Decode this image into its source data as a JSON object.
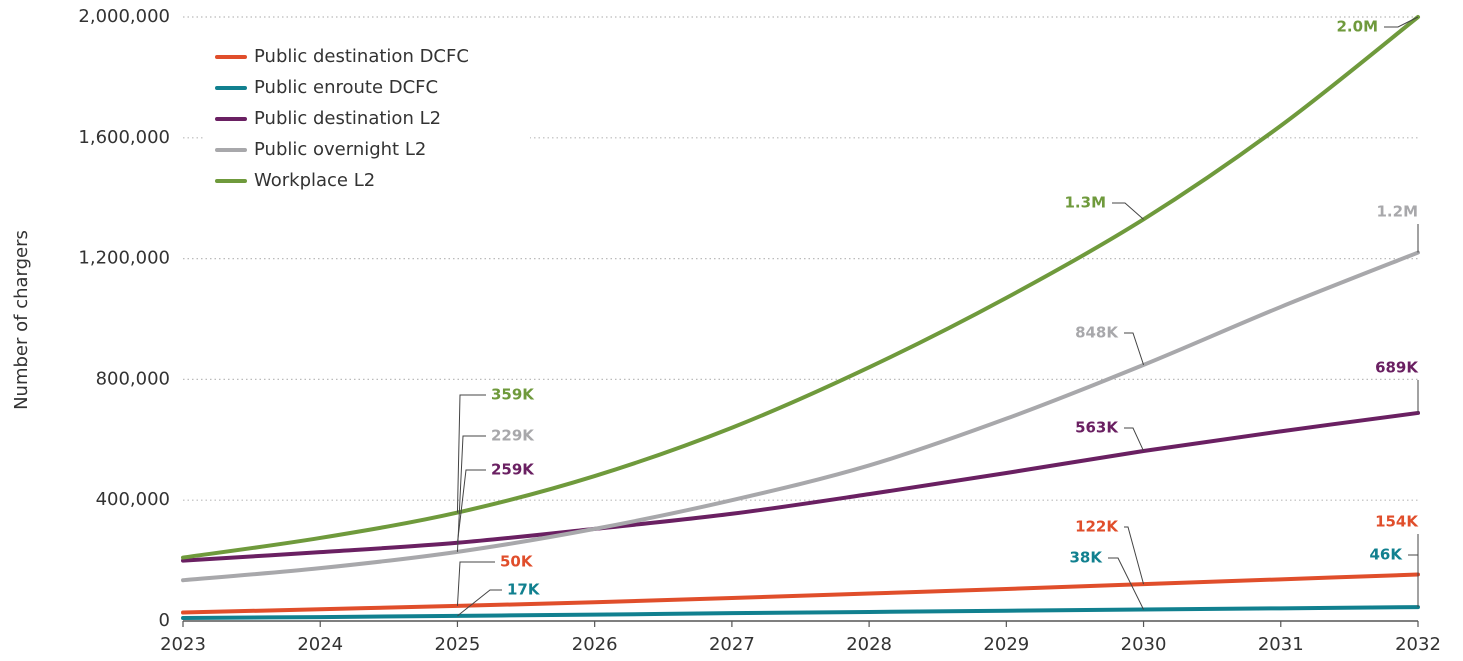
{
  "chart_data": {
    "type": "line",
    "y_label": "Number of chargers",
    "x": [
      2023,
      2024,
      2025,
      2026,
      2027,
      2028,
      2029,
      2030,
      2031,
      2032
    ],
    "xlim": [
      2023,
      2032
    ],
    "xticks": [
      2023,
      2024,
      2025,
      2026,
      2027,
      2028,
      2029,
      2030,
      2031,
      2032
    ],
    "ylim": [
      0,
      2000000
    ],
    "yticks": [
      0,
      {
        "value": 400000,
        "label": "400,000"
      },
      {
        "value": 800000,
        "label": "800,000"
      },
      {
        "value": 1200000,
        "label": "1,200,000"
      },
      {
        "value": 1600000,
        "label": "1,600,000"
      },
      {
        "value": 2000000,
        "label": "2,000,000"
      }
    ],
    "grid": true,
    "legend": "upper left",
    "series": [
      {
        "name": "Public destination DCFC",
        "color": "#e04e2b",
        "values": [
          28000,
          39000,
          50000,
          62000,
          76000,
          91000,
          106000,
          122000,
          138000,
          154000
        ],
        "value_labels": [
          null,
          null,
          "50K",
          null,
          null,
          null,
          null,
          "122K",
          null,
          "154K"
        ]
      },
      {
        "name": "Public enroute DCFC",
        "color": "#11808f",
        "values": [
          10000,
          13000,
          17000,
          21000,
          26000,
          30000,
          34000,
          38000,
          42000,
          46000
        ],
        "value_labels": [
          null,
          null,
          "17K",
          null,
          null,
          null,
          null,
          "38K",
          null,
          "46K"
        ]
      },
      {
        "name": "Public destination L2",
        "color": "#6a2062",
        "values": [
          200000,
          228000,
          259000,
          305000,
          355000,
          420000,
          490000,
          563000,
          628000,
          689000
        ],
        "value_labels": [
          null,
          null,
          "259K",
          null,
          null,
          null,
          null,
          "563K",
          null,
          "689K"
        ]
      },
      {
        "name": "Public overnight L2",
        "color": "#a8a8ab",
        "values": [
          135000,
          175000,
          229000,
          305000,
          400000,
          515000,
          670000,
          848000,
          1040000,
          1220000
        ],
        "value_labels": [
          null,
          null,
          "229K",
          null,
          null,
          null,
          null,
          "848K",
          null,
          "1.2M"
        ]
      },
      {
        "name": "Workplace L2",
        "color": "#6f9a3c",
        "values": [
          210000,
          275000,
          359000,
          480000,
          640000,
          840000,
          1070000,
          1330000,
          1640000,
          2000000
        ],
        "value_labels": [
          null,
          null,
          "359K",
          null,
          null,
          null,
          null,
          "1.3M",
          null,
          "2.0M"
        ]
      }
    ]
  }
}
